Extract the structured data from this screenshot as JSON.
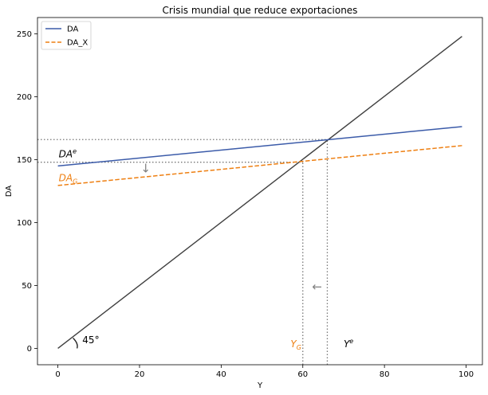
{
  "chart_data": {
    "type": "line",
    "title": "Crisis mundial que reduce exportaciones",
    "xlabel": "Y",
    "ylabel": "DA",
    "xlim": [
      -5,
      104
    ],
    "ylim": [
      -13,
      263
    ],
    "xticks": [
      0,
      20,
      40,
      60,
      80,
      100
    ],
    "yticks": [
      0,
      50,
      100,
      150,
      200,
      250
    ],
    "grid": false,
    "legend_position": "top-left",
    "series": [
      {
        "name": "DA",
        "color": "#3b5ba9",
        "style": "solid",
        "x": [
          0,
          99
        ],
        "y": [
          145,
          176.3
        ]
      },
      {
        "name": "DA_X",
        "color": "#ee7f11",
        "style": "dashed",
        "x": [
          0,
          99
        ],
        "y": [
          129.5,
          161.2
        ]
      }
    ],
    "reference_line": {
      "label": "45°",
      "color": "#3f3f3f",
      "x": [
        0,
        99
      ],
      "y": [
        0,
        248
      ]
    },
    "guides": {
      "color": "#777777",
      "hlines": [
        {
          "y": 166,
          "x_to": 66
        },
        {
          "y": 148,
          "x_to": 60
        }
      ],
      "vlines": [
        {
          "x": 66,
          "y_to": 166
        },
        {
          "x": 60,
          "y_to": 148
        }
      ]
    },
    "annotations": [
      {
        "id": "da-e",
        "base": "DA",
        "sup": "e",
        "sub": "",
        "color": "#000000",
        "x": 0.2,
        "y": 152
      },
      {
        "id": "da-g",
        "base": "DA",
        "sup": "",
        "sub": "G",
        "color": "#ee7f11",
        "x": 0.2,
        "y": 133
      },
      {
        "id": "y-g",
        "base": "Y",
        "sup": "",
        "sub": "G",
        "color": "#ee7f11",
        "x": 57,
        "y": 1
      },
      {
        "id": "y-e",
        "base": "Y",
        "sup": "e",
        "sub": "",
        "color": "#000000",
        "x": 70,
        "y": 1
      },
      {
        "id": "angle-45",
        "base": "45°",
        "sup": "",
        "sub": "",
        "color": "#000000",
        "x": 6,
        "y": 4
      }
    ],
    "arrows": [
      {
        "id": "arrow-down",
        "glyph": "↓",
        "x": 21.5,
        "y": 140,
        "color": "#808080"
      },
      {
        "id": "arrow-left",
        "glyph": "←",
        "x": 63.5,
        "y": 46,
        "color": "#808080"
      }
    ]
  }
}
